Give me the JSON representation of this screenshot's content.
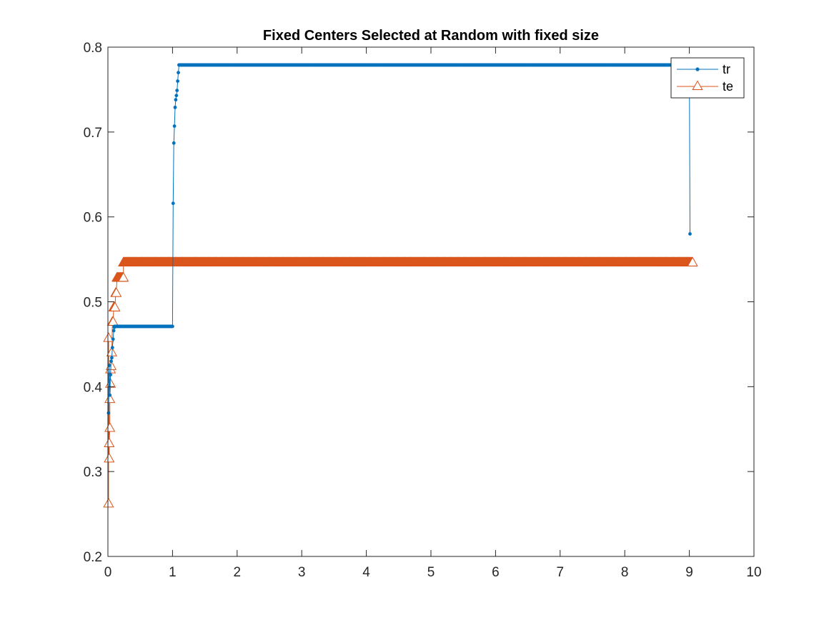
{
  "chart_data": {
    "type": "line",
    "title": "Fixed Centers Selected at Random with fixed size",
    "xlabel": "",
    "ylabel": "",
    "xlim": [
      0,
      10
    ],
    "ylim": [
      0.2,
      0.8
    ],
    "xticks": [
      "0",
      "1",
      "2",
      "3",
      "4",
      "5",
      "6",
      "7",
      "8",
      "9",
      "10"
    ],
    "yticks": [
      "0.2",
      "0.3",
      "0.4",
      "0.5",
      "0.6",
      "0.7",
      "0.8"
    ],
    "grid": false,
    "legend_position": "top-right",
    "series": [
      {
        "name": "tr",
        "color": "#0072BD",
        "marker": "point",
        "segments": [
          {
            "x": [
              0.01,
              0.02,
              0.03,
              0.04,
              0.05,
              0.06,
              0.07,
              0.08,
              0.09,
              0.1
            ],
            "y": [
              0.369,
              0.425,
              0.39,
              0.414,
              0.43,
              0.434,
              0.446,
              0.456,
              0.466,
              0.47
            ]
          },
          {
            "from": 0.1,
            "to": 1.0,
            "step": 0.01,
            "y": 0.471
          },
          {
            "x": [
              1.01,
              1.02,
              1.03,
              1.04,
              1.05,
              1.06,
              1.07,
              1.08,
              1.09
            ],
            "y": [
              0.616,
              0.687,
              0.707,
              0.729,
              0.738,
              0.743,
              0.749,
              0.76,
              0.77
            ]
          },
          {
            "from": 1.1,
            "to": 9.0,
            "step": 0.01,
            "y": 0.779
          },
          {
            "x": [
              9.01
            ],
            "y": [
              0.58
            ]
          }
        ]
      },
      {
        "name": "te",
        "color": "#D95319",
        "marker": "triangle",
        "segments": [
          {
            "x": [
              0.01,
              0.01,
              0.02,
              0.02,
              0.03,
              0.03,
              0.04,
              0.04,
              0.05,
              0.06,
              0.07,
              0.08,
              0.09,
              0.1,
              0.11,
              0.12,
              0.13,
              0.14,
              0.15
            ],
            "y": [
              0.262,
              0.457,
              0.315,
              0.333,
              0.351,
              0.385,
              0.403,
              0.42,
              0.424,
              0.44,
              0.476,
              0.476,
              0.493,
              0.493,
              0.493,
              0.51,
              0.51,
              0.528,
              0.528
            ]
          },
          {
            "from": 0.16,
            "to": 0.24,
            "step": 0.01,
            "y": 0.528
          },
          {
            "from": 0.24,
            "to": 9.05,
            "step": 0.01,
            "y": 0.546
          }
        ]
      }
    ]
  }
}
